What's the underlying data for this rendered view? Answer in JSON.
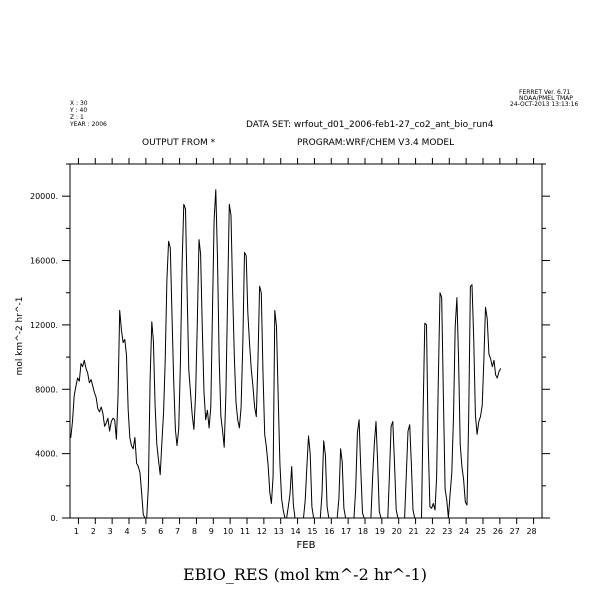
{
  "header": {
    "ferret_lines": [
      "FERRET Ver. 6.71",
      "NOAA/PMEL TMAP",
      "24-OCT-2013 13:13:16"
    ],
    "coord_lines": [
      "X : 30",
      "Y : 40",
      "Z : 1",
      "YEAR : 2006"
    ],
    "dataset": "DATA SET: wrfout_d01_2006-feb1-27_co2_ant_bio_run4",
    "output_from": "OUTPUT FROM *",
    "program": "PROGRAM:WRF/CHEM V3.4 MODEL"
  },
  "chart_data": {
    "type": "line",
    "title": "EBIO_RES (mol km^-2 hr^-1)",
    "xlabel": "FEB",
    "ylabel": "mol km^-2 hr^-1",
    "xlim": [
      0.5,
      28.5
    ],
    "ylim": [
      0,
      22000
    ],
    "x_ticks": [
      1,
      2,
      3,
      4,
      5,
      6,
      7,
      8,
      9,
      10,
      11,
      12,
      13,
      14,
      15,
      16,
      17,
      18,
      19,
      20,
      21,
      22,
      23,
      24,
      25,
      26,
      27,
      28
    ],
    "x_tick_labels": [
      "1",
      "2",
      "3",
      "4",
      "5",
      "6",
      "7",
      "8",
      "9",
      "10",
      "11",
      "12",
      "13",
      "14",
      "15",
      "16",
      "17",
      "18",
      "19",
      "20",
      "21",
      "22",
      "23",
      "24",
      "25",
      "26",
      "27",
      "28"
    ],
    "y_ticks": [
      0,
      4000,
      8000,
      12000,
      16000,
      20000
    ],
    "y_tick_labels": [
      "0.",
      "4000.",
      "8000.",
      "12000.",
      "16000.",
      "20000."
    ],
    "grid": false,
    "series": [
      {
        "values": [
          [
            0.5,
            5200
          ],
          [
            0.55,
            5000
          ],
          [
            0.65,
            6000
          ],
          [
            0.75,
            7600
          ],
          [
            0.85,
            8200
          ],
          [
            0.95,
            8700
          ],
          [
            1.05,
            8500
          ],
          [
            1.15,
            9600
          ],
          [
            1.25,
            9400
          ],
          [
            1.35,
            9800
          ],
          [
            1.45,
            9300
          ],
          [
            1.55,
            9000
          ],
          [
            1.65,
            8400
          ],
          [
            1.75,
            8600
          ],
          [
            1.85,
            8200
          ],
          [
            1.95,
            7800
          ],
          [
            2.05,
            7500
          ],
          [
            2.15,
            6800
          ],
          [
            2.25,
            6600
          ],
          [
            2.35,
            6900
          ],
          [
            2.45,
            6500
          ],
          [
            2.55,
            5700
          ],
          [
            2.65,
            5900
          ],
          [
            2.75,
            6200
          ],
          [
            2.85,
            5400
          ],
          [
            2.95,
            6000
          ],
          [
            3.05,
            6200
          ],
          [
            3.15,
            6100
          ],
          [
            3.25,
            4900
          ],
          [
            3.35,
            7500
          ],
          [
            3.45,
            12900
          ],
          [
            3.55,
            11700
          ],
          [
            3.65,
            10900
          ],
          [
            3.75,
            11100
          ],
          [
            3.85,
            10100
          ],
          [
            3.95,
            6700
          ],
          [
            4.05,
            5000
          ],
          [
            4.15,
            4500
          ],
          [
            4.25,
            4300
          ],
          [
            4.35,
            5000
          ],
          [
            4.45,
            3400
          ],
          [
            4.55,
            3200
          ],
          [
            4.65,
            2800
          ],
          [
            4.75,
            1600
          ],
          [
            4.85,
            200
          ],
          [
            4.95,
            0
          ],
          [
            5.05,
            0
          ],
          [
            5.15,
            2000
          ],
          [
            5.25,
            8600
          ],
          [
            5.35,
            12200
          ],
          [
            5.45,
            11000
          ],
          [
            5.55,
            7000
          ],
          [
            5.65,
            4600
          ],
          [
            5.75,
            3600
          ],
          [
            5.85,
            2700
          ],
          [
            5.95,
            4700
          ],
          [
            6.05,
            6600
          ],
          [
            6.15,
            9800
          ],
          [
            6.25,
            14800
          ],
          [
            6.35,
            17200
          ],
          [
            6.45,
            16800
          ],
          [
            6.55,
            12600
          ],
          [
            6.65,
            8500
          ],
          [
            6.75,
            5500
          ],
          [
            6.85,
            4500
          ],
          [
            6.95,
            5500
          ],
          [
            7.05,
            9600
          ],
          [
            7.15,
            15800
          ],
          [
            7.25,
            19500
          ],
          [
            7.35,
            19200
          ],
          [
            7.45,
            13800
          ],
          [
            7.55,
            9200
          ],
          [
            7.65,
            7800
          ],
          [
            7.75,
            6400
          ],
          [
            7.85,
            5500
          ],
          [
            7.95,
            7700
          ],
          [
            8.05,
            12100
          ],
          [
            8.15,
            17300
          ],
          [
            8.25,
            16400
          ],
          [
            8.35,
            11800
          ],
          [
            8.45,
            7800
          ],
          [
            8.55,
            6100
          ],
          [
            8.65,
            6700
          ],
          [
            8.75,
            5600
          ],
          [
            8.85,
            6900
          ],
          [
            8.95,
            12600
          ],
          [
            9.05,
            18500
          ],
          [
            9.15,
            20400
          ],
          [
            9.25,
            16100
          ],
          [
            9.35,
            9800
          ],
          [
            9.45,
            6300
          ],
          [
            9.55,
            5400
          ],
          [
            9.65,
            4400
          ],
          [
            9.75,
            7700
          ],
          [
            9.85,
            13700
          ],
          [
            9.95,
            19500
          ],
          [
            10.05,
            18800
          ],
          [
            10.15,
            13900
          ],
          [
            10.25,
            9900
          ],
          [
            10.35,
            7200
          ],
          [
            10.45,
            6100
          ],
          [
            10.55,
            5600
          ],
          [
            10.65,
            6900
          ],
          [
            10.75,
            10800
          ],
          [
            10.85,
            16500
          ],
          [
            10.95,
            16300
          ],
          [
            11.05,
            12800
          ],
          [
            11.15,
            10900
          ],
          [
            11.25,
            9300
          ],
          [
            11.35,
            8200
          ],
          [
            11.45,
            6900
          ],
          [
            11.55,
            6300
          ],
          [
            11.65,
            9900
          ],
          [
            11.75,
            14400
          ],
          [
            11.85,
            14000
          ],
          [
            11.95,
            9000
          ],
          [
            12.05,
            5200
          ],
          [
            12.15,
            4400
          ],
          [
            12.25,
            3300
          ],
          [
            12.35,
            1600
          ],
          [
            12.45,
            900
          ],
          [
            12.55,
            2600
          ],
          [
            12.65,
            12900
          ],
          [
            12.75,
            11900
          ],
          [
            12.85,
            7500
          ],
          [
            12.95,
            3400
          ],
          [
            13.05,
            1200
          ],
          [
            13.15,
            500
          ],
          [
            13.25,
            0
          ],
          [
            13.35,
            0
          ],
          [
            13.45,
            700
          ],
          [
            13.55,
            1500
          ],
          [
            13.65,
            3200
          ],
          [
            13.75,
            800
          ],
          [
            13.85,
            0
          ],
          [
            14.35,
            0
          ],
          [
            14.45,
            1100
          ],
          [
            14.55,
            3100
          ],
          [
            14.65,
            5100
          ],
          [
            14.75,
            4000
          ],
          [
            14.85,
            700
          ],
          [
            14.95,
            0
          ],
          [
            15.35,
            0
          ],
          [
            15.45,
            1500
          ],
          [
            15.55,
            4800
          ],
          [
            15.65,
            3900
          ],
          [
            15.75,
            700
          ],
          [
            15.85,
            0
          ],
          [
            16.35,
            0
          ],
          [
            16.45,
            1200
          ],
          [
            16.55,
            4300
          ],
          [
            16.65,
            3500
          ],
          [
            16.75,
            600
          ],
          [
            16.85,
            0
          ],
          [
            17.35,
            0
          ],
          [
            17.45,
            1800
          ],
          [
            17.55,
            5300
          ],
          [
            17.65,
            6100
          ],
          [
            17.75,
            3000
          ],
          [
            17.85,
            300
          ],
          [
            17.95,
            0
          ],
          [
            18.35,
            0
          ],
          [
            18.45,
            2500
          ],
          [
            18.55,
            4600
          ],
          [
            18.65,
            6000
          ],
          [
            18.75,
            3500
          ],
          [
            18.85,
            400
          ],
          [
            18.95,
            0
          ],
          [
            19.35,
            0
          ],
          [
            19.45,
            2600
          ],
          [
            19.55,
            5700
          ],
          [
            19.65,
            6000
          ],
          [
            19.75,
            3400
          ],
          [
            19.85,
            500
          ],
          [
            19.95,
            0
          ],
          [
            20.35,
            0
          ],
          [
            20.45,
            2700
          ],
          [
            20.55,
            5400
          ],
          [
            20.65,
            5800
          ],
          [
            20.75,
            3300
          ],
          [
            20.85,
            500
          ],
          [
            20.95,
            0
          ],
          [
            21.35,
            0
          ],
          [
            21.45,
            6900
          ],
          [
            21.55,
            12100
          ],
          [
            21.65,
            12000
          ],
          [
            21.75,
            4700
          ],
          [
            21.85,
            700
          ],
          [
            21.95,
            600
          ],
          [
            22.05,
            900
          ],
          [
            22.15,
            500
          ],
          [
            22.25,
            2500
          ],
          [
            22.35,
            8500
          ],
          [
            22.45,
            14000
          ],
          [
            22.55,
            13700
          ],
          [
            22.65,
            7500
          ],
          [
            22.75,
            1800
          ],
          [
            22.85,
            1100
          ],
          [
            22.95,
            0
          ],
          [
            23.05,
            1500
          ],
          [
            23.15,
            2800
          ],
          [
            23.25,
            6300
          ],
          [
            23.35,
            11900
          ],
          [
            23.45,
            13700
          ],
          [
            23.55,
            9800
          ],
          [
            23.65,
            4600
          ],
          [
            23.75,
            3200
          ],
          [
            23.85,
            2400
          ],
          [
            23.95,
            1000
          ],
          [
            24.05,
            800
          ],
          [
            24.15,
            6300
          ],
          [
            24.25,
            14400
          ],
          [
            24.35,
            14500
          ],
          [
            24.45,
            11200
          ],
          [
            24.55,
            6400
          ],
          [
            24.65,
            5200
          ],
          [
            24.75,
            6000
          ],
          [
            24.85,
            6300
          ],
          [
            24.95,
            7000
          ],
          [
            25.05,
            9700
          ],
          [
            25.15,
            13100
          ],
          [
            25.25,
            12400
          ],
          [
            25.35,
            10200
          ],
          [
            25.45,
            9900
          ],
          [
            25.55,
            9400
          ],
          [
            25.65,
            9800
          ],
          [
            25.75,
            8900
          ],
          [
            25.85,
            8700
          ],
          [
            25.95,
            9100
          ],
          [
            26.05,
            9300
          ]
        ]
      }
    ]
  }
}
